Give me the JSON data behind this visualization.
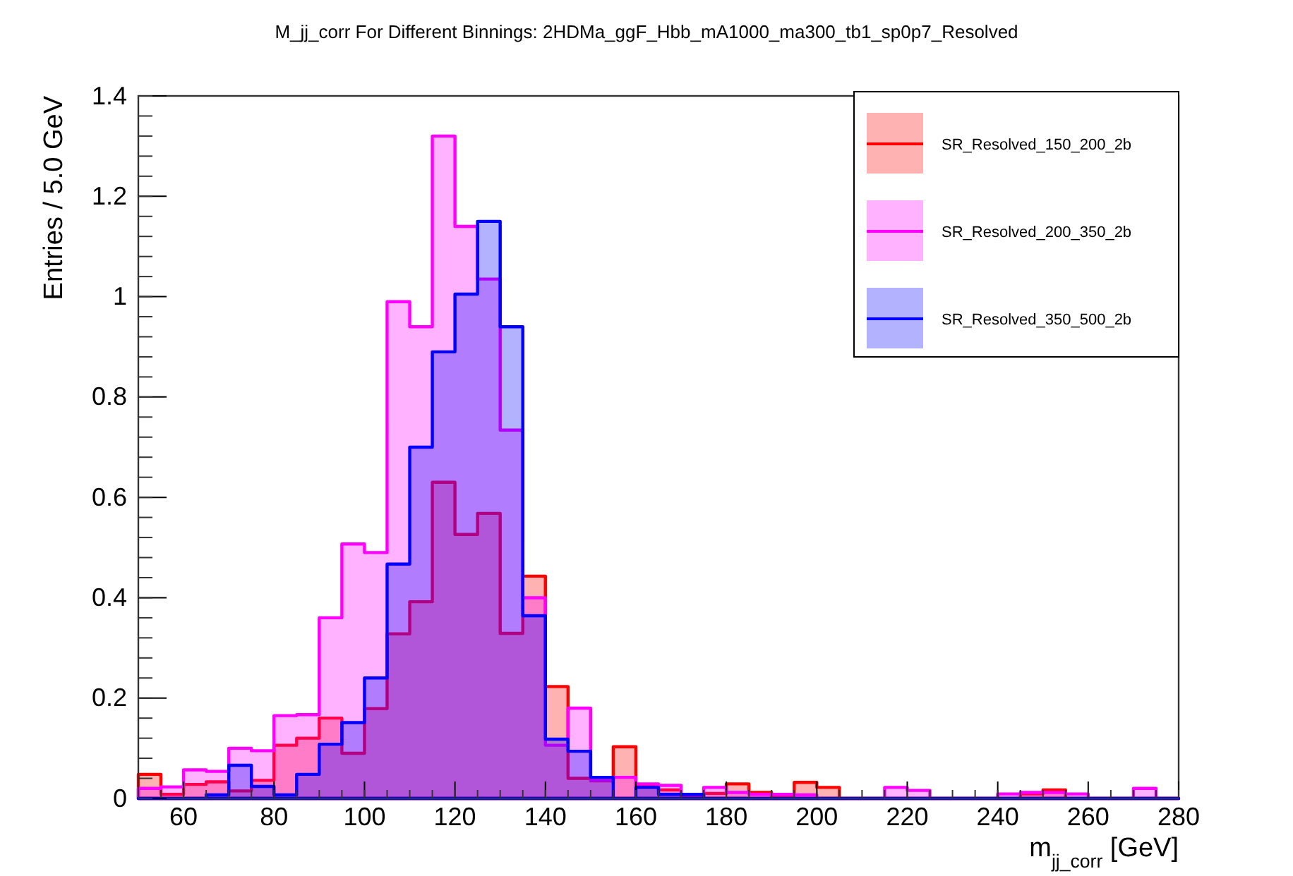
{
  "chart_data": {
    "type": "histogram",
    "title": "M_jj_corr For Different Binnings: 2HDMa_ggF_Hbb_mA1000_ma300_tb1_sp0p7_Resolved",
    "xlabel": "m$_{jj_corr}$ [GeV]",
    "ylabel": "Entries / 5.0 GeV",
    "bins": [
      50,
      55,
      60,
      65,
      70,
      75,
      80,
      85,
      90,
      95,
      100,
      105,
      110,
      115,
      120,
      125,
      130,
      135,
      140,
      145,
      150,
      155,
      160,
      165,
      170,
      175,
      180,
      185,
      190,
      195,
      200,
      205,
      210,
      215,
      220,
      225,
      230,
      235,
      240,
      245,
      250,
      255,
      260,
      265,
      270,
      275,
      280
    ],
    "series": [
      {
        "name": "SR_Resolved_150_200_2b",
        "color": "#ff0000",
        "values": [
          0.048,
          0.008,
          0.028,
          0.033,
          0.015,
          0.036,
          0.106,
          0.12,
          0.16,
          0.09,
          0.179,
          0.328,
          0.392,
          0.63,
          0.526,
          0.568,
          0.329,
          0.443,
          0.223,
          0.04,
          0.035,
          0.103,
          0.026,
          0.017,
          0.005,
          0.01,
          0.029,
          0.012,
          0.005,
          0.032,
          0.022,
          0,
          0,
          0,
          0,
          0,
          0,
          0,
          0,
          0.009,
          0.017,
          0,
          0,
          0,
          0,
          0
        ]
      },
      {
        "name": "SR_Resolved_200_350_2b",
        "color": "#ff00ff",
        "values": [
          0.02,
          0.023,
          0.057,
          0.054,
          0.1,
          0.095,
          0.165,
          0.167,
          0.36,
          0.507,
          0.49,
          0.99,
          0.94,
          1.32,
          1.14,
          1.035,
          0.734,
          0.4,
          0.106,
          0.18,
          0.036,
          0.042,
          0.029,
          0.026,
          0.008,
          0.022,
          0.012,
          0.008,
          0.008,
          0.007,
          0,
          0,
          0,
          0.022,
          0.016,
          0,
          0,
          0,
          0.009,
          0.012,
          0.012,
          0.009,
          0,
          0,
          0.02,
          0
        ]
      },
      {
        "name": "SR_Resolved_350_500_2b",
        "color": "#0000ff",
        "values": [
          0,
          0,
          0,
          0.007,
          0.066,
          0.024,
          0.007,
          0.048,
          0.108,
          0.151,
          0.24,
          0.467,
          0.7,
          0.89,
          1.005,
          1.15,
          0.94,
          0.364,
          0.118,
          0.094,
          0.042,
          0,
          0.022,
          0.008,
          0.008,
          0,
          0,
          0,
          0,
          0,
          0,
          0,
          0,
          0,
          0,
          0,
          0,
          0,
          0,
          0,
          0,
          0,
          0,
          0,
          0,
          0
        ]
      }
    ],
    "xlim": [
      50,
      280
    ],
    "xticks": [
      60,
      80,
      100,
      120,
      140,
      160,
      180,
      200,
      220,
      240,
      260,
      280
    ],
    "ylim": [
      0,
      1.4
    ],
    "yticks": [
      0,
      0.2,
      0.4,
      0.6,
      0.8,
      1,
      1.2,
      1.4
    ],
    "legend": "top right",
    "grid": false
  }
}
